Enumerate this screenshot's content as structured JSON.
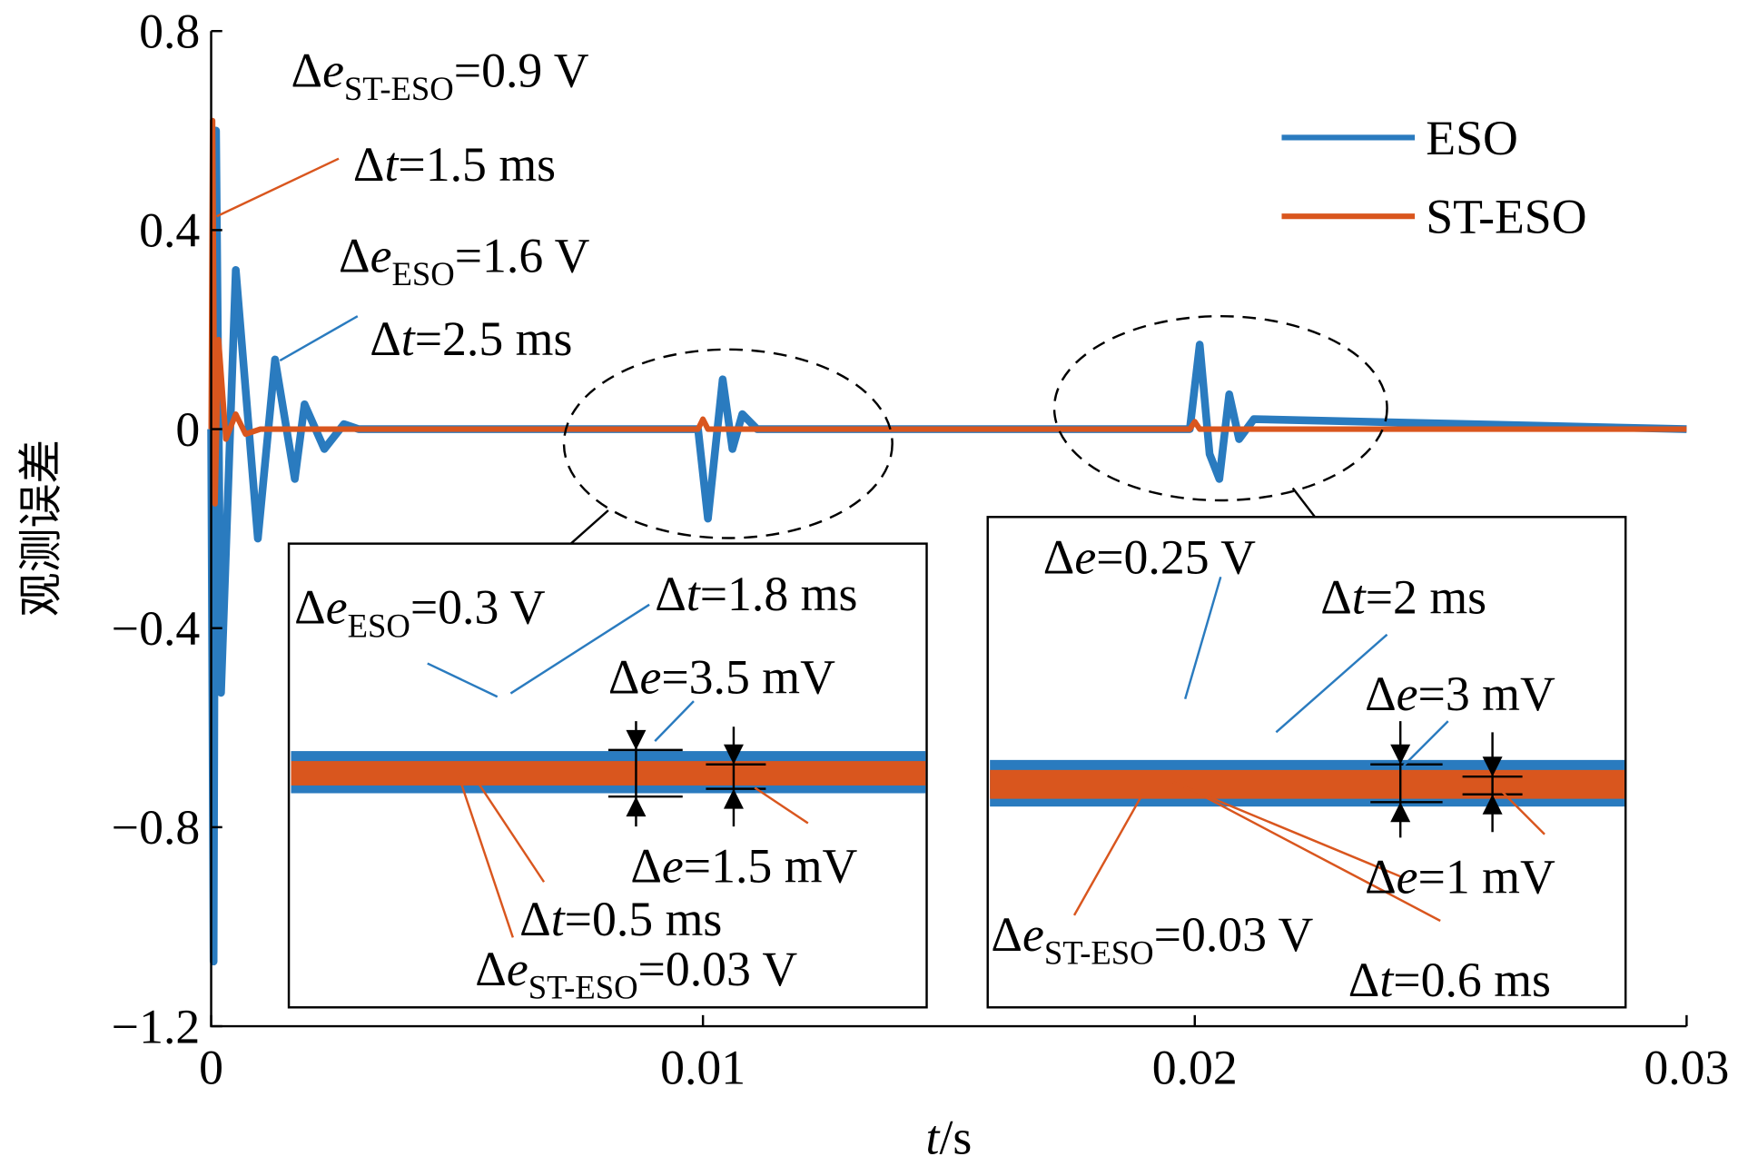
{
  "chart_data": {
    "type": "line",
    "xlabel": {
      "var": "t",
      "text": "/s"
    },
    "ylabel": "观测误差",
    "xlim": [
      0,
      0.03
    ],
    "xticks": [
      0,
      0.01,
      0.02,
      0.03
    ],
    "ylim": [
      -1.2,
      0.8
    ],
    "yticks": [
      {
        "value": -1.2,
        "label": "−1.2"
      },
      {
        "value": -0.8,
        "label": "−0.8"
      },
      {
        "value": -0.4,
        "label": "−0.4"
      },
      0,
      0.4,
      0.8
    ],
    "legend": "upper right",
    "series": [
      {
        "name": "ESO",
        "color": "#2a7bbf",
        "x": [
          0,
          5e-05,
          0.0001,
          0.0002,
          0.0005,
          0.00095,
          0.0013,
          0.0017,
          0.0019,
          0.0023,
          0.0027,
          0.003,
          0.0099,
          0.0101,
          0.0104,
          0.0106,
          0.0108,
          0.0111,
          0.0199,
          0.0201,
          0.0203,
          0.0205,
          0.0207,
          0.0209,
          0.0212,
          0.03
        ],
        "values": [
          0,
          -1.07,
          0.6,
          -0.53,
          0.32,
          -0.22,
          0.14,
          -0.1,
          0.05,
          -0.04,
          0.01,
          0,
          0,
          -0.18,
          0.1,
          -0.04,
          0.03,
          0,
          0,
          0.17,
          -0.05,
          -0.1,
          0.07,
          -0.02,
          0.02,
          0
        ]
      },
      {
        "name": "ST-ESO",
        "color": "#d9561e",
        "x": [
          0,
          3e-05,
          8e-05,
          0.00015,
          0.0003,
          0.0005,
          0.0007,
          0.001,
          0.0099,
          0.01,
          0.0101,
          0.0199,
          0.02,
          0.0201,
          0.03
        ],
        "values": [
          0,
          0.62,
          -0.15,
          0.18,
          -0.02,
          0.03,
          -0.01,
          0,
          0,
          0.02,
          0,
          0,
          0.015,
          0,
          0
        ]
      }
    ],
    "annotations": [
      {
        "symbol": "Δ",
        "var": "e",
        "sub": "ST-ESO",
        "text": "=0.9 V"
      },
      {
        "symbol": "Δ",
        "var": "t",
        "text": "=1.5 ms"
      },
      {
        "symbol": "Δ",
        "var": "e",
        "sub": "ESO",
        "text": "=1.6 V"
      },
      {
        "symbol": "Δ",
        "var": "t",
        "text": "=2.5 ms"
      },
      {
        "symbol": "Δ",
        "var": "e",
        "sub": "ESO",
        "text": "=0.3 V"
      },
      {
        "symbol": "Δ",
        "var": "t",
        "text": "=1.8 ms"
      },
      {
        "symbol": "Δ",
        "var": "e",
        "text": "=3.5 mV"
      },
      {
        "symbol": "Δ",
        "var": "e",
        "text": "=1.5 mV"
      },
      {
        "symbol": "Δ",
        "var": "t",
        "text": "=0.5 ms"
      },
      {
        "symbol": "Δ",
        "var": "e",
        "sub": "ST-ESO",
        "text": "=0.03 V"
      },
      {
        "symbol": "Δ",
        "var": "e",
        "text": "=0.25 V"
      },
      {
        "symbol": "Δ",
        "var": "t",
        "text": "=2 ms"
      },
      {
        "symbol": "Δ",
        "var": "e",
        "text": "=3 mV"
      },
      {
        "symbol": "Δ",
        "var": "e",
        "text": "=1 mV"
      },
      {
        "symbol": "Δ",
        "var": "e",
        "sub": "ST-ESO",
        "text": "=0.03 V"
      },
      {
        "symbol": "Δ",
        "var": "t",
        "text": "=0.6 ms"
      }
    ]
  }
}
